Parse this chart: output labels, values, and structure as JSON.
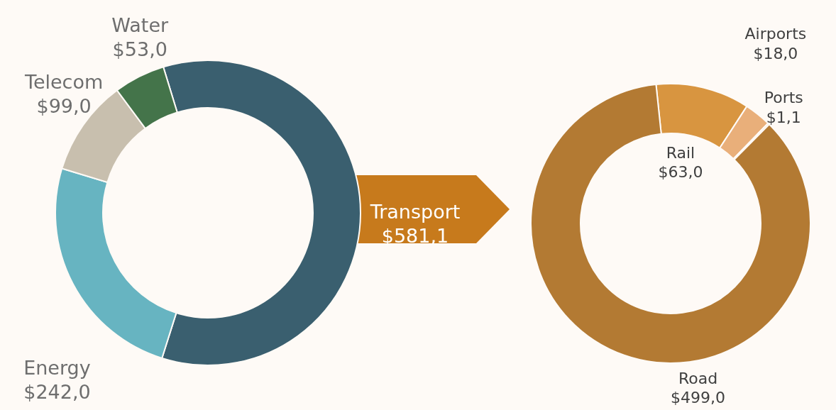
{
  "chart_data": [
    {
      "type": "donut",
      "categories": [
        "Transport",
        "Energy",
        "Telecom",
        "Water"
      ],
      "values": [
        581.1,
        242.0,
        99.0,
        53.0
      ],
      "value_labels": [
        "$581,1",
        "$242,0",
        "$99,0",
        "$53,0"
      ],
      "colors": [
        "#3a5f6f",
        "#67b4c1",
        "#c8bfae",
        "#44744a"
      ]
    },
    {
      "type": "donut",
      "categories": [
        "Rail",
        "Airports",
        "Ports",
        "Road"
      ],
      "values": [
        63.0,
        18.0,
        1.1,
        499.0
      ],
      "value_labels": [
        "$63,0",
        "$18,0",
        "$1,1",
        "$499,0"
      ],
      "colors": [
        "#d89540",
        "#e9af7a",
        "#f0c9a0",
        "#b37a33"
      ]
    }
  ]
}
